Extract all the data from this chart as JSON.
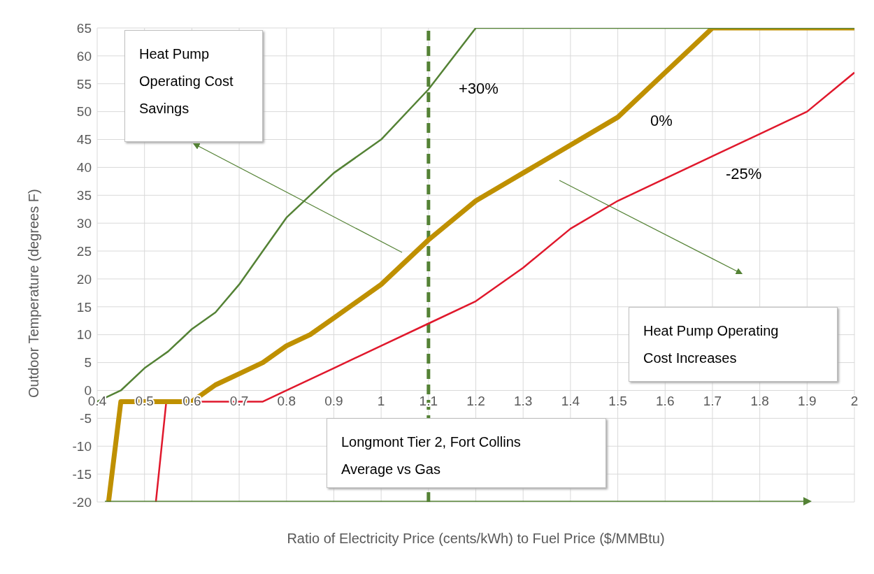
{
  "chart_data": {
    "type": "line",
    "xlabel": "Ratio of Electricity Price (cents/kWh) to Fuel Price ($/MMBtu)",
    "ylabel": "Outdoor Temperature (degrees F)",
    "xlim": [
      0.4,
      2
    ],
    "xticks": [
      {
        "value": 0.4,
        "label": "0.4"
      },
      {
        "value": 0.5,
        "label": "0.5"
      },
      {
        "value": 0.6,
        "label": "0.6"
      },
      {
        "value": 0.7,
        "label": "0.7"
      },
      {
        "value": 0.8,
        "label": "0.8"
      },
      {
        "value": 0.9,
        "label": "0.9"
      },
      1,
      {
        "value": 1.1,
        "label": "1.1"
      },
      {
        "value": 1.2,
        "label": "1.2"
      },
      {
        "value": 1.3,
        "label": "1.3"
      },
      {
        "value": 1.4,
        "label": "1.4"
      },
      {
        "value": 1.5,
        "label": "1.5"
      },
      {
        "value": 1.6,
        "label": "1.6"
      },
      {
        "value": 1.7,
        "label": "1.7"
      },
      {
        "value": 1.8,
        "label": "1.8"
      },
      {
        "value": 1.9,
        "label": "1.9"
      },
      2
    ],
    "ylim": [
      -20,
      65
    ],
    "yticks": [
      -20,
      -15,
      -10,
      -5,
      0,
      5,
      10,
      15,
      20,
      25,
      30,
      35,
      40,
      45,
      50,
      55,
      60,
      65
    ],
    "grid": true,
    "legend": false,
    "marker": "none",
    "line_style": "solid",
    "series": [
      {
        "name": "+30%",
        "color": "#548235",
        "x": [
          0.4,
          0.45,
          0.5,
          0.55,
          0.6,
          0.65,
          0.7,
          0.75,
          0.8,
          0.85,
          0.9,
          1.0,
          1.1,
          1.2,
          2.0
        ],
        "values": [
          -2,
          0,
          4,
          7,
          11,
          14,
          19,
          25,
          31,
          35,
          39,
          45,
          54,
          65,
          65
        ]
      },
      {
        "name": "0%",
        "color": "#bf9000",
        "x": [
          0.424,
          0.45,
          0.6,
          0.65,
          0.7,
          0.75,
          0.8,
          0.85,
          0.9,
          1.0,
          1.1,
          1.2,
          1.3,
          1.4,
          1.5,
          1.6,
          1.7,
          2.0
        ],
        "values": [
          -20,
          -2,
          -2,
          1,
          3,
          5,
          8,
          10,
          13,
          19,
          27,
          34,
          39,
          44,
          49,
          57,
          65,
          65
        ]
      },
      {
        "name": "-25%",
        "color": "#e0182c",
        "x": [
          0.524,
          0.546,
          0.75,
          0.8,
          0.9,
          1.0,
          1.1,
          1.2,
          1.3,
          1.4,
          1.5,
          1.6,
          1.7,
          1.8,
          1.9,
          2.0
        ],
        "values": [
          -20,
          -2,
          -2,
          0,
          4,
          8,
          12,
          16,
          22,
          29,
          34,
          38,
          42,
          46,
          50,
          57
        ]
      }
    ],
    "ref_lines": [
      {
        "axis": "x",
        "value": 1.1,
        "color": "#548235",
        "line_style": "dashed"
      }
    ],
    "annotations": [
      "Heat Pump Operating Cost Savings",
      "Heat Pump Operating Cost Increases",
      "Longmont Tier 2, Fort Collins Average vs Gas"
    ]
  }
}
